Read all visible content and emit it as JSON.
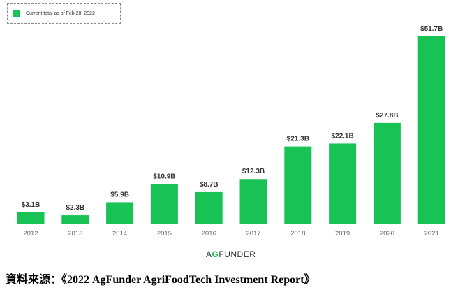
{
  "legend": {
    "label": "Current total as of Feb 28, 2022",
    "color": "#19c254"
  },
  "brand": {
    "name": "AgFunder",
    "accent_letter": "G",
    "display_rest_a": "A",
    "display_rest_b": "FUNDER"
  },
  "source_text": "資料來源：《2022 AgFunder AgriFoodTech Investment Report》",
  "chart_data": {
    "type": "bar",
    "title": "",
    "xlabel": "",
    "ylabel": "",
    "categories": [
      "2012",
      "2013",
      "2014",
      "2015",
      "2016",
      "2017",
      "2018",
      "2019",
      "2020",
      "2021"
    ],
    "values": [
      3.1,
      2.3,
      5.9,
      10.9,
      8.7,
      12.3,
      21.3,
      22.1,
      27.8,
      51.7
    ],
    "value_labels": [
      "$3.1B",
      "$2.3B",
      "$5.9B",
      "$10.9B",
      "$8.7B",
      "$12.3B",
      "$21.3B",
      "$22.1B",
      "$27.8B",
      "$51.7B"
    ],
    "ylim": [
      0,
      51.7
    ],
    "grid": false,
    "bar_color": "#19c254",
    "legend_position": "top-left"
  }
}
